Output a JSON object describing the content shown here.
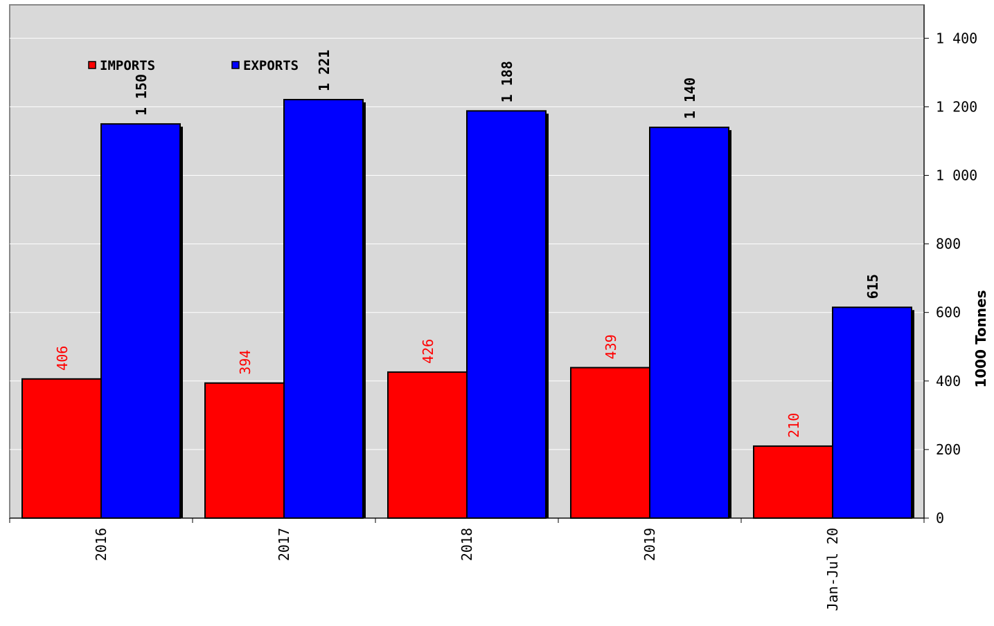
{
  "chart_data": {
    "type": "bar",
    "categories": [
      "2016",
      "2017",
      "2018",
      "2019",
      "Jan-Jul 20"
    ],
    "series": [
      {
        "name": "IMPORTS",
        "values": [
          406,
          394,
          426,
          439,
          210
        ],
        "color": "#ff0000",
        "labels": [
          "406",
          "394",
          "426",
          "439",
          "210"
        ],
        "label_color": "#ff0000"
      },
      {
        "name": "EXPORTS",
        "values": [
          1150,
          1221,
          1188,
          1140,
          615
        ],
        "color": "#0000ff",
        "labels": [
          "1 150",
          "1 221",
          "1 188",
          "1 140",
          "615"
        ],
        "label_color": "#000000"
      }
    ],
    "ylabel": "1000 Tonnes",
    "ylim": [
      0,
      1500
    ],
    "yticks": [
      0,
      200,
      400,
      600,
      800,
      1000,
      1200,
      1400
    ],
    "ytick_labels": [
      "0",
      "200",
      "400",
      "600",
      "800",
      "1 000",
      "1 200",
      "1 400"
    ],
    "y_axis_side": "right",
    "grid": true,
    "legend_position": "top-left",
    "plot_background": "#d9d9d9"
  }
}
